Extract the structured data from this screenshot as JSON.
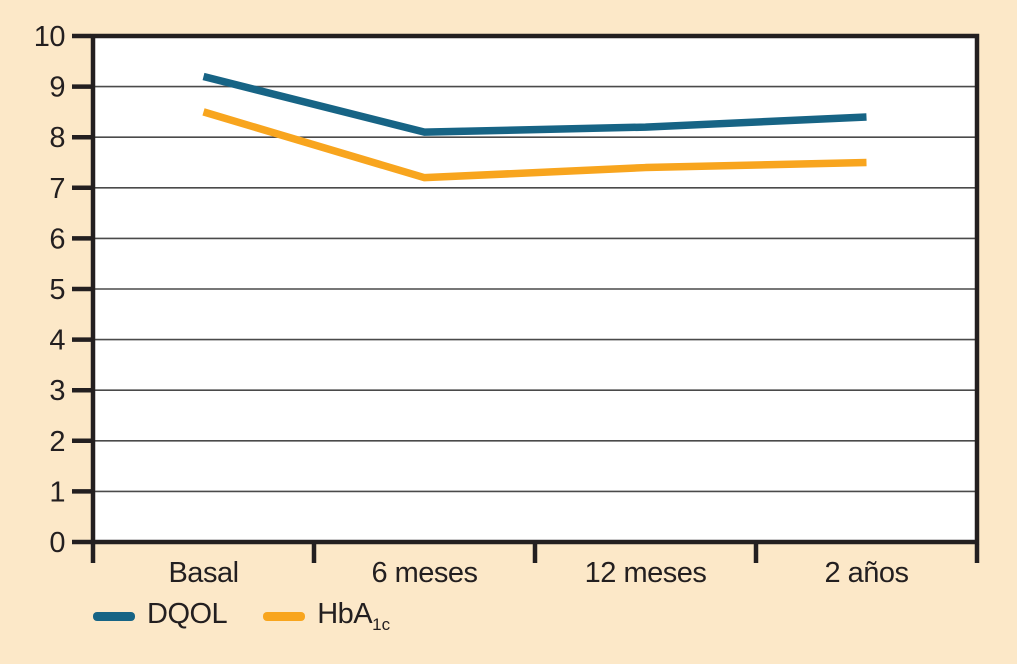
{
  "figure": {
    "background_color": "#fce8c8",
    "plot_background_color": "#ffffff",
    "axis_color": "#231f20",
    "gridline_color": "#4a4a4a"
  },
  "chart_data": {
    "type": "line",
    "title": "",
    "xlabel": "",
    "ylabel": "",
    "categories": [
      "Basal",
      "6 meses",
      "12 meses",
      "2 años"
    ],
    "series": [
      {
        "name": "DQOL",
        "sub": "",
        "color": "#176485",
        "values": [
          9.2,
          8.1,
          8.2,
          8.4
        ]
      },
      {
        "name": "HbA",
        "sub": "1c",
        "color": "#f8a51e",
        "values": [
          8.5,
          7.2,
          7.4,
          7.5
        ]
      }
    ],
    "ylim": [
      0,
      10
    ],
    "yticks": [
      0,
      1,
      2,
      3,
      4,
      5,
      6,
      7,
      8,
      9,
      10
    ],
    "grid": "horizontal",
    "legend_position": "bottom-left"
  }
}
